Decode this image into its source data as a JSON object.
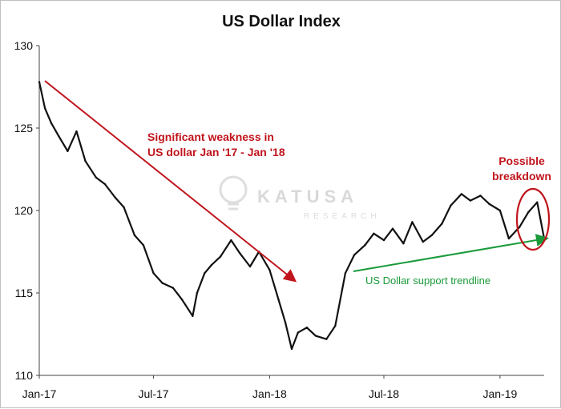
{
  "chart_data": {
    "type": "line",
    "title": "US Dollar Index",
    "xlabel": "",
    "ylabel": "",
    "ylim": [
      110,
      130
    ],
    "y_ticks": [
      110,
      115,
      120,
      125,
      130
    ],
    "x_tick_labels": [
      "Jan-17",
      "Jul-17",
      "Jan-18",
      "Jul-18",
      "Jan-19"
    ],
    "x_tick_dates": [
      "2017-01-01",
      "2017-07-01",
      "2018-01-01",
      "2018-07-01",
      "2019-01-01"
    ],
    "xlim": [
      "2017-01-01",
      "2019-03-12"
    ],
    "grid": false,
    "series": [
      {
        "color": "#111111",
        "x": [
          "2017-01-01",
          "2017-01-10",
          "2017-01-20",
          "2017-02-01",
          "2017-02-15",
          "2017-03-01",
          "2017-03-15",
          "2017-04-01",
          "2017-04-15",
          "2017-05-01",
          "2017-05-15",
          "2017-06-01",
          "2017-06-15",
          "2017-07-01",
          "2017-07-15",
          "2017-08-01",
          "2017-08-15",
          "2017-09-01",
          "2017-09-08",
          "2017-09-20",
          "2017-10-01",
          "2017-10-15",
          "2017-11-01",
          "2017-11-15",
          "2017-12-01",
          "2017-12-15",
          "2018-01-01",
          "2018-01-15",
          "2018-01-26",
          "2018-02-05",
          "2018-02-15",
          "2018-03-01",
          "2018-03-15",
          "2018-04-01",
          "2018-04-15",
          "2018-05-01",
          "2018-05-15",
          "2018-06-01",
          "2018-06-15",
          "2018-07-01",
          "2018-07-15",
          "2018-08-01",
          "2018-08-15",
          "2018-09-01",
          "2018-09-15",
          "2018-10-01",
          "2018-10-15",
          "2018-11-01",
          "2018-11-15",
          "2018-12-01",
          "2018-12-15",
          "2019-01-01",
          "2019-01-15",
          "2019-02-01",
          "2019-02-15",
          "2019-03-01",
          "2019-03-12"
        ],
        "values": [
          127.8,
          126.2,
          125.3,
          124.5,
          123.6,
          124.8,
          123.0,
          122.0,
          121.6,
          120.8,
          120.2,
          118.5,
          117.9,
          116.2,
          115.6,
          115.3,
          114.6,
          113.6,
          115.0,
          116.2,
          116.7,
          117.2,
          118.2,
          117.4,
          116.6,
          117.5,
          116.4,
          114.6,
          113.2,
          111.6,
          112.6,
          112.9,
          112.4,
          112.2,
          113.0,
          116.2,
          117.3,
          117.9,
          118.6,
          118.2,
          118.9,
          118.0,
          119.3,
          118.1,
          118.5,
          119.2,
          120.3,
          121.0,
          120.6,
          120.9,
          120.4,
          120.0,
          118.3,
          119.0,
          119.9,
          120.5,
          118.3
        ]
      }
    ],
    "annotations": [
      {
        "text_lines": [
          "Significant weakness in",
          "US dollar Jan '17 - Jan '18"
        ],
        "color": "#c0141c"
      },
      {
        "text_lines": [
          "Possible",
          "breakdown"
        ],
        "color": "#c0141c"
      },
      {
        "text_lines": [
          "US Dollar support trendline"
        ],
        "color": "#1a9a3a"
      }
    ]
  },
  "watermark": {
    "brand": "KATUSA",
    "sub": "RESEARCH"
  }
}
